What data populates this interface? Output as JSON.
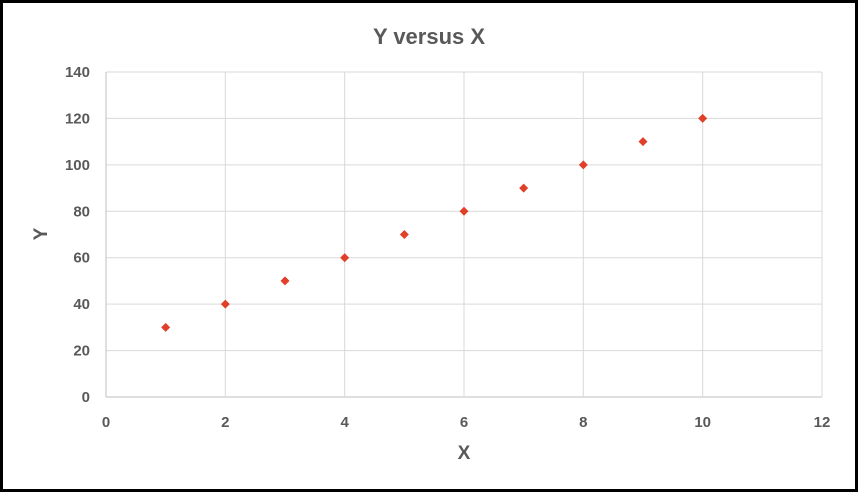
{
  "chart_data": {
    "type": "scatter",
    "title": "Y versus X",
    "xlabel": "X",
    "ylabel": "Y",
    "xlim": [
      0,
      12
    ],
    "ylim": [
      0,
      140
    ],
    "xticks": [
      0,
      2,
      4,
      6,
      8,
      10,
      12
    ],
    "yticks": [
      0,
      20,
      40,
      60,
      80,
      100,
      120,
      140
    ],
    "grid": true,
    "legend": "none",
    "marker_color": "#e0402a",
    "marker_shape": "diamond",
    "points": [
      {
        "x": 1,
        "y": 30
      },
      {
        "x": 2,
        "y": 40
      },
      {
        "x": 3,
        "y": 50
      },
      {
        "x": 4,
        "y": 60
      },
      {
        "x": 5,
        "y": 70
      },
      {
        "x": 6,
        "y": 80
      },
      {
        "x": 7,
        "y": 90
      },
      {
        "x": 8,
        "y": 100
      },
      {
        "x": 9,
        "y": 110
      },
      {
        "x": 10,
        "y": 120
      }
    ]
  }
}
